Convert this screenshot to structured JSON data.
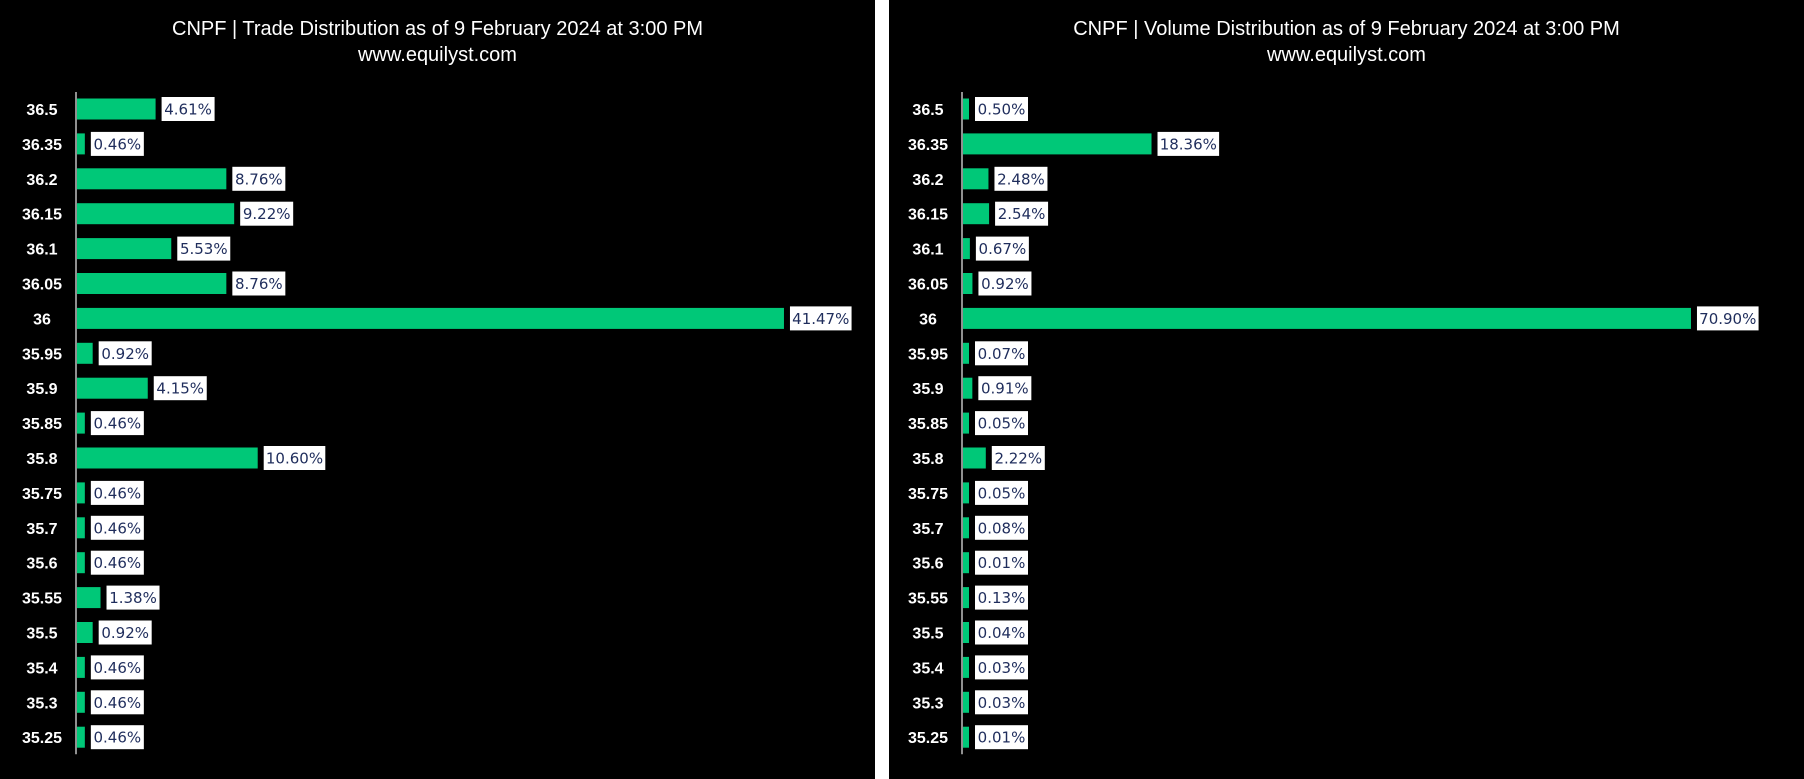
{
  "colors": {
    "bar": "#00c878",
    "background": "#000000",
    "label_box": "#ffffff",
    "label_text": "#1f2d5c",
    "text": "#ffffff"
  },
  "chart_data": [
    {
      "type": "bar",
      "orientation": "horizontal",
      "title": "CNPF | Trade Distribution as of 9 February 2024 at 3:00 PM",
      "subtitle": "www.equilyst.com",
      "categories": [
        "36.5",
        "36.35",
        "36.2",
        "36.15",
        "36.1",
        "36.05",
        "36",
        "35.95",
        "35.9",
        "35.85",
        "35.8",
        "35.75",
        "35.7",
        "35.6",
        "35.55",
        "35.5",
        "35.4",
        "35.3",
        "35.25"
      ],
      "values": [
        4.61,
        0.46,
        8.76,
        9.22,
        5.53,
        8.76,
        41.47,
        0.92,
        4.15,
        0.46,
        10.6,
        0.46,
        0.46,
        0.46,
        1.38,
        0.92,
        0.46,
        0.46,
        0.46
      ],
      "data_labels": [
        "4.61%",
        "0.46%",
        "8.76%",
        "9.22%",
        "5.53%",
        "8.76%",
        "41.47%",
        "0.92%",
        "4.15%",
        "0.46%",
        "10.60%",
        "0.46%",
        "0.46%",
        "0.46%",
        "1.38%",
        "0.92%",
        "0.46%",
        "0.46%",
        "0.46%"
      ],
      "xlim": [
        0,
        42
      ],
      "grid": false,
      "legend": "none"
    },
    {
      "type": "bar",
      "orientation": "horizontal",
      "title": "CNPF | Volume Distribution as of 9 February 2024 at 3:00 PM",
      "subtitle": "www.equilyst.com",
      "categories": [
        "36.5",
        "36.35",
        "36.2",
        "36.15",
        "36.1",
        "36.05",
        "36",
        "35.95",
        "35.9",
        "35.85",
        "35.8",
        "35.75",
        "35.7",
        "35.6",
        "35.55",
        "35.5",
        "35.4",
        "35.3",
        "35.25"
      ],
      "values": [
        0.5,
        18.36,
        2.48,
        2.54,
        0.67,
        0.92,
        70.9,
        0.07,
        0.91,
        0.05,
        2.22,
        0.05,
        0.08,
        0.01,
        0.13,
        0.04,
        0.03,
        0.03,
        0.01
      ],
      "data_labels": [
        "0.50%",
        "18.36%",
        "2.48%",
        "2.54%",
        "0.67%",
        "0.92%",
        "70.90%",
        "0.07%",
        "0.91%",
        "0.05%",
        "2.22%",
        "0.05%",
        "0.08%",
        "0.01%",
        "0.13%",
        "0.04%",
        "0.03%",
        "0.03%",
        "0.01%"
      ],
      "xlim": [
        0,
        71
      ],
      "grid": false,
      "legend": "none"
    }
  ]
}
